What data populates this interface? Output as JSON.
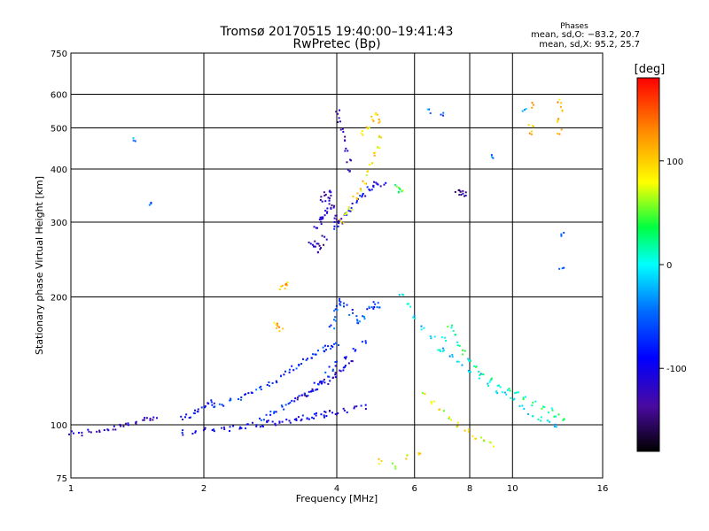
{
  "chart_data": {
    "type": "scatter",
    "title": "Tromsø 20170515 19:40:00–19:41:43",
    "subtitle": "RwPretec (Bp)",
    "xlabel": "Frequency [MHz]",
    "ylabel": "Stationary phase Virtual Height [km]",
    "xscale": "log",
    "yscale": "log",
    "xlim": [
      1,
      16
    ],
    "ylim": [
      75,
      750
    ],
    "xticks": [
      1,
      2,
      4,
      6,
      8,
      10,
      16
    ],
    "yticks": [
      75,
      100,
      200,
      300,
      400,
      500,
      600,
      750
    ],
    "grid": true,
    "stats": {
      "title": "Phases",
      "o_line": "mean, sd,O: −83.2, 20.7",
      "x_line": "mean, sd,X:  95.2, 25.7"
    },
    "colorbar": {
      "label": "[deg]",
      "range": [
        -180,
        180
      ],
      "ticks": [
        100,
        0,
        -100
      ]
    },
    "series": [
      {
        "values": [
          [
            1.0,
            96
          ],
          [
            1.05,
            95
          ],
          [
            1.1,
            97
          ],
          [
            1.15,
            96
          ],
          [
            1.2,
            97
          ],
          [
            1.25,
            98
          ],
          [
            1.3,
            99
          ],
          [
            1.35,
            100
          ],
          [
            1.4,
            101
          ],
          [
            1.45,
            103
          ],
          [
            1.5,
            104
          ],
          [
            1.55,
            104
          ]
        ],
        "phase": -120
      },
      {
        "values": [
          [
            1.8,
            104
          ],
          [
            1.85,
            105
          ],
          [
            1.9,
            107
          ],
          [
            1.95,
            108
          ],
          [
            2.0,
            110
          ],
          [
            2.05,
            111
          ],
          [
            2.1,
            113
          ]
        ],
        "phase": -95
      },
      {
        "values": [
          [
            1.8,
            96
          ],
          [
            1.9,
            96
          ],
          [
            2.0,
            97
          ],
          [
            2.1,
            97
          ],
          [
            2.2,
            98
          ],
          [
            2.3,
            98
          ],
          [
            2.4,
            99
          ],
          [
            2.5,
            99
          ],
          [
            2.6,
            100
          ],
          [
            2.7,
            100
          ],
          [
            2.8,
            101
          ],
          [
            2.9,
            101
          ],
          [
            3.0,
            102
          ],
          [
            3.1,
            102
          ],
          [
            3.2,
            103
          ],
          [
            3.3,
            103
          ],
          [
            3.4,
            104
          ],
          [
            3.5,
            104
          ],
          [
            3.6,
            105
          ],
          [
            3.7,
            105
          ],
          [
            3.8,
            106
          ],
          [
            3.9,
            107
          ],
          [
            4.0,
            107
          ],
          [
            4.2,
            108
          ],
          [
            4.4,
            109
          ],
          [
            4.6,
            110
          ]
        ],
        "phase": -100
      },
      {
        "values": [
          [
            2.1,
            110
          ],
          [
            2.2,
            112
          ],
          [
            2.3,
            114
          ],
          [
            2.4,
            116
          ],
          [
            2.5,
            118
          ],
          [
            2.6,
            120
          ],
          [
            2.7,
            122
          ],
          [
            2.8,
            125
          ],
          [
            2.9,
            127
          ],
          [
            3.0,
            130
          ],
          [
            3.1,
            133
          ],
          [
            3.2,
            136
          ],
          [
            3.3,
            139
          ],
          [
            3.4,
            142
          ],
          [
            3.5,
            145
          ],
          [
            3.6,
            148
          ],
          [
            3.7,
            150
          ],
          [
            3.8,
            152
          ],
          [
            3.9,
            153
          ],
          [
            4.0,
            154
          ]
        ],
        "phase": -70
      },
      {
        "values": [
          [
            2.7,
            104
          ],
          [
            2.8,
            106
          ],
          [
            2.9,
            108
          ],
          [
            3.0,
            110
          ],
          [
            3.1,
            112
          ],
          [
            3.2,
            114
          ],
          [
            3.3,
            116
          ],
          [
            3.4,
            118
          ],
          [
            3.5,
            121
          ],
          [
            3.6,
            124
          ],
          [
            3.7,
            127
          ],
          [
            3.8,
            131
          ],
          [
            3.9,
            135
          ],
          [
            4.0,
            139
          ],
          [
            4.2,
            144
          ],
          [
            4.4,
            150
          ],
          [
            4.6,
            156
          ]
        ],
        "phase": -80
      },
      {
        "values": [
          [
            3.3,
            116
          ],
          [
            3.4,
            118
          ],
          [
            3.5,
            120
          ],
          [
            3.6,
            122
          ],
          [
            3.7,
            124
          ],
          [
            3.8,
            126
          ],
          [
            3.9,
            128
          ],
          [
            4.0,
            131
          ],
          [
            4.1,
            134
          ],
          [
            4.2,
            137
          ],
          [
            4.3,
            140
          ]
        ],
        "phase": -110
      },
      {
        "values": [
          [
            3.9,
            170
          ],
          [
            3.95,
            178
          ],
          [
            4.0,
            186
          ],
          [
            4.05,
            192
          ],
          [
            4.1,
            196
          ],
          [
            4.2,
            192
          ],
          [
            4.3,
            184
          ],
          [
            4.4,
            178
          ],
          [
            4.5,
            174
          ],
          [
            4.6,
            180
          ],
          [
            4.7,
            188
          ],
          [
            4.8,
            190
          ],
          [
            4.9,
            192
          ],
          [
            5.0,
            190
          ]
        ],
        "phase": -60
      },
      {
        "values": [
          [
            3.6,
            290
          ],
          [
            3.65,
            300
          ],
          [
            3.7,
            306
          ],
          [
            3.75,
            312
          ],
          [
            3.8,
            318
          ],
          [
            3.85,
            322
          ],
          [
            3.9,
            326
          ],
          [
            3.95,
            310
          ],
          [
            4.0,
            298
          ],
          [
            4.05,
            305
          ],
          [
            3.7,
            340
          ],
          [
            3.75,
            350
          ],
          [
            3.8,
            335
          ],
          [
            3.85,
            345
          ],
          [
            3.9,
            355
          ]
        ],
        "phase": -120
      },
      {
        "values": [
          [
            3.5,
            268
          ],
          [
            3.55,
            262
          ],
          [
            3.6,
            270
          ],
          [
            3.65,
            258
          ],
          [
            3.7,
            264
          ],
          [
            3.75,
            275
          ]
        ],
        "phase": -125
      },
      {
        "values": [
          [
            4.0,
            290
          ],
          [
            4.1,
            300
          ],
          [
            4.2,
            310
          ],
          [
            4.3,
            320
          ],
          [
            4.4,
            332
          ],
          [
            4.5,
            342
          ],
          [
            4.6,
            350
          ],
          [
            4.7,
            358
          ],
          [
            4.8,
            362
          ],
          [
            4.9,
            368
          ],
          [
            5.0,
            372
          ],
          [
            5.1,
            366
          ]
        ],
        "phase": -90
      },
      {
        "values": [
          [
            4.1,
            300
          ],
          [
            4.2,
            312
          ],
          [
            4.3,
            325
          ],
          [
            4.4,
            340
          ],
          [
            4.5,
            355
          ],
          [
            4.6,
            372
          ],
          [
            4.7,
            392
          ],
          [
            4.8,
            412
          ],
          [
            4.9,
            432
          ],
          [
            5.0,
            455
          ],
          [
            5.05,
            480
          ]
        ],
        "phase": 90
      },
      {
        "values": [
          [
            4.0,
            545
          ],
          [
            4.05,
            520
          ],
          [
            4.1,
            495
          ],
          [
            4.15,
            470
          ],
          [
            4.2,
            445
          ],
          [
            4.25,
            420
          ],
          [
            4.3,
            400
          ]
        ],
        "phase": -130
      },
      {
        "values": [
          [
            4.6,
            485
          ],
          [
            4.7,
            505
          ],
          [
            4.8,
            525
          ],
          [
            4.9,
            540
          ],
          [
            5.0,
            520
          ]
        ],
        "phase": 95
      },
      {
        "values": [
          [
            5.5,
            362
          ],
          [
            5.55,
            358
          ],
          [
            5.6,
            355
          ]
        ],
        "phase": 40
      },
      {
        "values": [
          [
            3.0,
            210
          ],
          [
            3.05,
            212
          ],
          [
            3.1,
            214
          ],
          [
            2.9,
            172
          ],
          [
            2.95,
            170
          ],
          [
            3.0,
            168
          ]
        ],
        "phase": 110
      },
      {
        "values": [
          [
            7.5,
            355
          ],
          [
            7.6,
            352
          ],
          [
            7.7,
            350
          ],
          [
            7.8,
            348
          ]
        ],
        "phase": -130
      },
      {
        "values": [
          [
            11.0,
            565
          ],
          [
            11.0,
            505
          ],
          [
            11.0,
            485
          ],
          [
            12.8,
            580
          ],
          [
            12.8,
            555
          ],
          [
            12.8,
            520
          ],
          [
            12.8,
            490
          ]
        ],
        "phase": 110
      },
      {
        "values": [
          [
            1.4,
            470
          ],
          [
            6.5,
            545
          ],
          [
            6.9,
            535
          ],
          [
            9.0,
            430
          ],
          [
            10.6,
            555
          ],
          [
            12.9,
            280
          ],
          [
            12.9,
            235
          ],
          [
            1.5,
            332
          ]
        ],
        "phase": -40
      },
      {
        "values": [
          [
            5.6,
            200
          ],
          [
            5.8,
            190
          ],
          [
            6.0,
            180
          ],
          [
            6.3,
            170
          ],
          [
            6.6,
            160
          ],
          [
            7.0,
            150
          ],
          [
            7.3,
            145
          ],
          [
            7.6,
            140
          ],
          [
            8.0,
            135
          ],
          [
            8.4,
            130
          ],
          [
            8.8,
            125
          ],
          [
            9.2,
            120
          ],
          [
            9.6,
            118
          ],
          [
            10.0,
            115
          ],
          [
            10.5,
            110
          ],
          [
            11.0,
            106
          ],
          [
            11.5,
            103
          ],
          [
            12.0,
            101
          ],
          [
            12.5,
            99
          ]
        ],
        "phase": -10
      },
      {
        "values": [
          [
            6.8,
            150
          ],
          [
            7.0,
            160
          ],
          [
            7.2,
            170
          ],
          [
            7.4,
            165
          ],
          [
            7.6,
            155
          ],
          [
            7.8,
            148
          ],
          [
            8.0,
            142
          ],
          [
            8.2,
            138
          ],
          [
            8.5,
            132
          ],
          [
            8.9,
            128
          ],
          [
            9.3,
            124
          ],
          [
            9.8,
            120
          ],
          [
            10.2,
            118
          ],
          [
            10.7,
            115
          ],
          [
            11.2,
            112
          ],
          [
            11.7,
            110
          ],
          [
            12.2,
            108
          ],
          [
            12.6,
            106
          ],
          [
            13.0,
            104
          ]
        ],
        "phase": 20
      },
      {
        "values": [
          [
            6.3,
            118
          ],
          [
            6.6,
            112
          ],
          [
            6.9,
            108
          ],
          [
            7.2,
            104
          ],
          [
            7.5,
            100
          ],
          [
            7.9,
            97
          ],
          [
            8.2,
            94
          ],
          [
            8.6,
            92
          ],
          [
            9.0,
            90
          ],
          [
            5.0,
            82
          ],
          [
            5.4,
            80
          ],
          [
            5.8,
            84
          ],
          [
            6.2,
            86
          ]
        ],
        "phase": 80
      }
    ]
  }
}
